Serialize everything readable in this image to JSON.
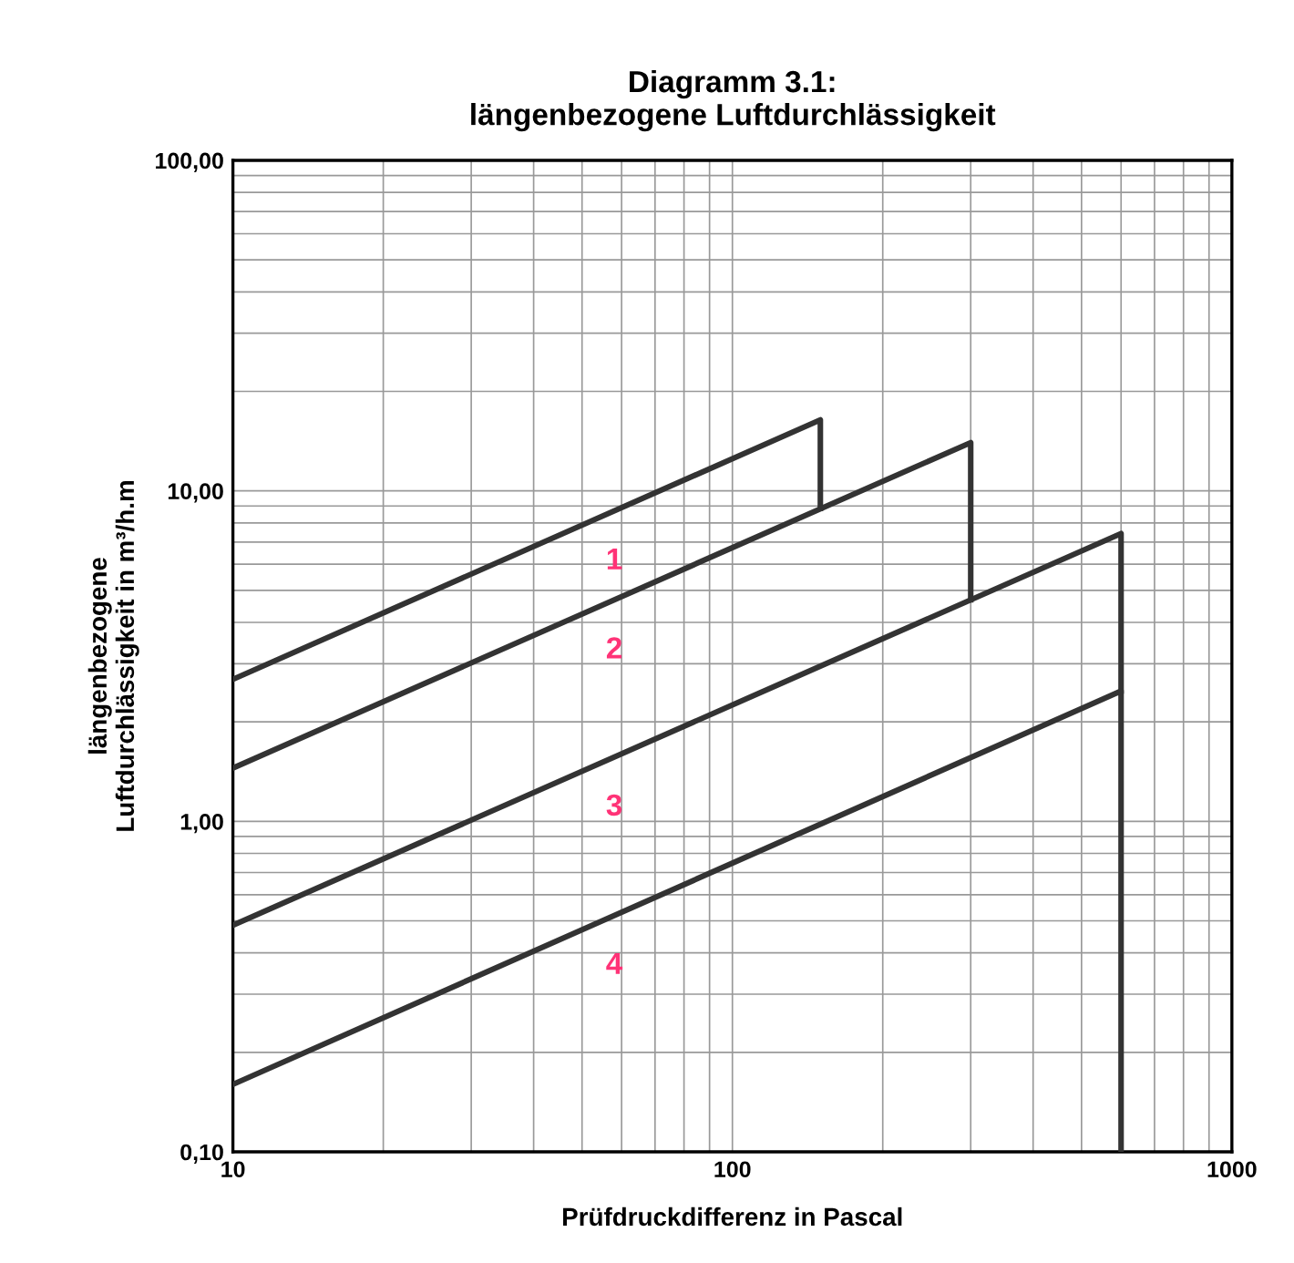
{
  "chart_data": {
    "type": "line",
    "title": "Diagramm 3.1:\nlängenbezogene Luftdurchlässigkeit",
    "xlabel": "Prüfdruckdifferenz in Pascal",
    "ylabel": "längenbezogene\nLuftdurchlässigkeit in m³/h.m",
    "series": [
      {
        "color": "#333333",
        "x": [
          10,
          150,
          150
        ],
        "values": [
          2.69,
          16.4,
          8.85
        ]
      },
      {
        "color": "#333333",
        "x": [
          10,
          300,
          300
        ],
        "values": [
          1.45,
          14.0,
          4.68
        ]
      },
      {
        "color": "#333333",
        "x": [
          10,
          600,
          600
        ],
        "values": [
          0.485,
          7.43,
          2.48
        ]
      },
      {
        "color": "#333333",
        "x": [
          10,
          600,
          600
        ],
        "values": [
          0.16,
          2.48,
          0.1
        ]
      }
    ],
    "annotations": [
      "1",
      "2",
      "3",
      "4"
    ],
    "log": "xy",
    "xlim": [
      10,
      1000
    ],
    "ylim": [
      0.1,
      100
    ],
    "xticks": [
      10,
      100,
      1000
    ],
    "yticks": [
      {
        "value": 0.1,
        "label": "0,10"
      },
      {
        "value": 1,
        "label": "1,00"
      },
      {
        "value": 10,
        "label": "10,00"
      },
      {
        "value": 100,
        "label": "100,00"
      }
    ],
    "grid": true,
    "marker": "none",
    "line_style": "solid"
  }
}
